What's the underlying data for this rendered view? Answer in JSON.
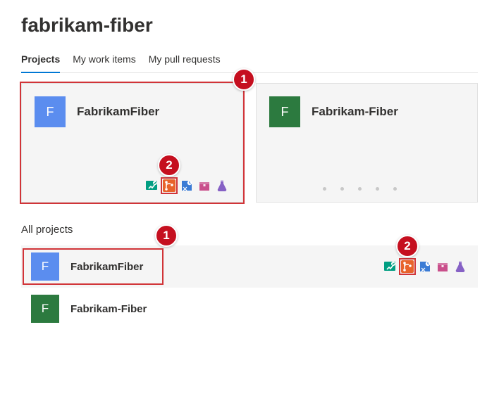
{
  "page": {
    "title": "fabrikam-fiber"
  },
  "tabs": [
    {
      "label": "Projects",
      "active": true
    },
    {
      "label": "My work items",
      "active": false
    },
    {
      "label": "My pull requests",
      "active": false
    }
  ],
  "callouts": {
    "one": "1",
    "two": "2"
  },
  "cards": [
    {
      "title": "FabrikamFiber",
      "avatar_letter": "F",
      "avatar_color": "#5b8def",
      "highlighted": true,
      "show_services": true
    },
    {
      "title": "Fabrikam-Fiber",
      "avatar_letter": "F",
      "avatar_color": "#2c7a3f",
      "highlighted": false,
      "show_services": false
    }
  ],
  "section": {
    "title": "All projects"
  },
  "list": [
    {
      "title": "FabrikamFiber",
      "avatar_letter": "F",
      "avatar_color": "#5b8def",
      "shaded": true,
      "show_services": true,
      "highlight_left": true
    },
    {
      "title": "Fabrikam-Fiber",
      "avatar_letter": "F",
      "avatar_color": "#2c7a3f",
      "shaded": false,
      "show_services": false,
      "highlight_left": false
    }
  ],
  "services": [
    {
      "name": "boards",
      "color": "#009e82",
      "highlighted": false
    },
    {
      "name": "repos",
      "color": "#e8632b",
      "highlighted": true
    },
    {
      "name": "pipelines",
      "color": "#3a7bd5",
      "highlighted": false
    },
    {
      "name": "artifacts",
      "color": "#c94f8b",
      "highlighted": false
    },
    {
      "name": "testplans",
      "color": "#8661c5",
      "highlighted": false
    }
  ]
}
